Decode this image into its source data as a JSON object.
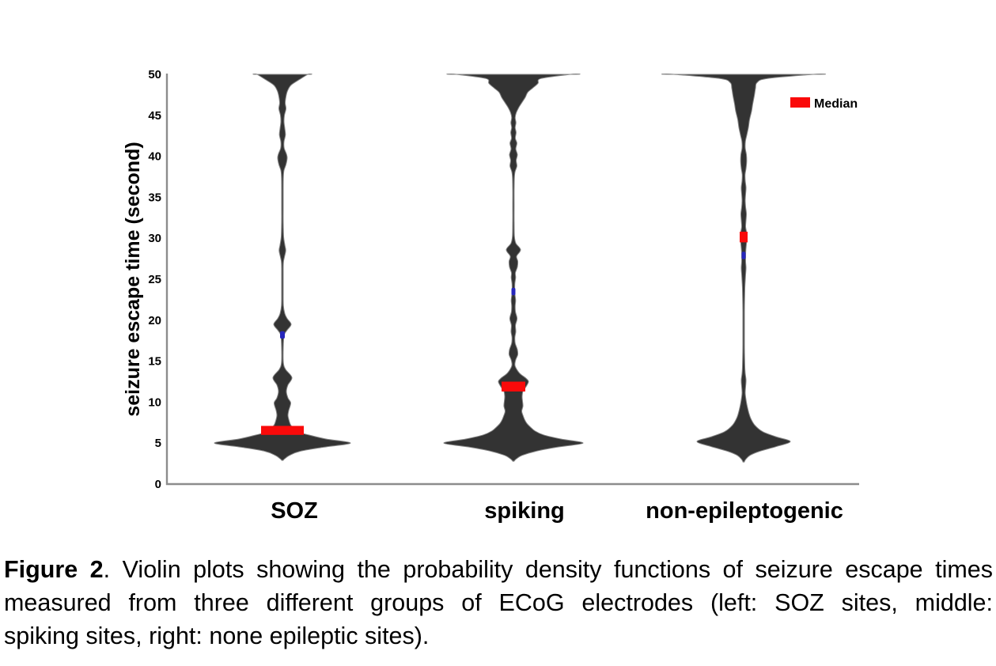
{
  "figure": {
    "caption": {
      "prefix": "Figure 2",
      "line1_rest": ". Violin plots showing the probability density functions of seizure escape times",
      "line2": "measured from three different groups of ECoG electrodes (left: SOZ sites, middle:",
      "line3": "spiking sites, right: none epileptic sites)."
    }
  },
  "chart_data": {
    "type": "violin",
    "title": "",
    "xlabel": "",
    "ylabel": "seizure escape time (second)",
    "ylim": [
      0,
      50
    ],
    "y_ticks": [
      0,
      5,
      10,
      15,
      20,
      25,
      30,
      35,
      40,
      45,
      50
    ],
    "grid": false,
    "legend": {
      "label": "Median",
      "position": "top-right",
      "swatch_color": "#fa0a0a"
    },
    "categories": [
      "SOZ",
      "spiking",
      "non-epileptogenic"
    ],
    "colors": {
      "violin_fill": "#333333",
      "violin_stroke": "#848484",
      "median": "#fa0a0a",
      "mean": "#2626bb",
      "axis": "#8c8c8c",
      "text": "#000000"
    },
    "series": [
      {
        "name": "SOZ",
        "median_interval_s": [
          6.0,
          7.1
        ],
        "median_halfwidth": 27,
        "mean_mark_s": 18.2,
        "mean_halfwidth": 3,
        "profile": [
          [
            50,
            32
          ],
          [
            49.4,
            22
          ],
          [
            48.7,
            11
          ],
          [
            48,
            6.5
          ],
          [
            47.3,
            4.5
          ],
          [
            46.5,
            3.5
          ],
          [
            45.8,
            4.5
          ],
          [
            45,
            2.5
          ],
          [
            44.2,
            2
          ],
          [
            43.4,
            3
          ],
          [
            42.6,
            3.8
          ],
          [
            41.8,
            2
          ],
          [
            41,
            2.2
          ],
          [
            40.3,
            5
          ],
          [
            39.8,
            6
          ],
          [
            39,
            4.5
          ],
          [
            38.3,
            2
          ],
          [
            37.5,
            1.2
          ],
          [
            36,
            1
          ],
          [
            34,
            1
          ],
          [
            32,
            1
          ],
          [
            30.2,
            1.5
          ],
          [
            29.2,
            3
          ],
          [
            28.5,
            4.2
          ],
          [
            27.7,
            2.5
          ],
          [
            27,
            1.2
          ],
          [
            25.5,
            1
          ],
          [
            23.5,
            1
          ],
          [
            21.8,
            1.2
          ],
          [
            20.8,
            3
          ],
          [
            20.2,
            6
          ],
          [
            19.5,
            11
          ],
          [
            18.8,
            6
          ],
          [
            18.3,
            2.5
          ],
          [
            17.7,
            1.5
          ],
          [
            16.5,
            1
          ],
          [
            14.8,
            1.2
          ],
          [
            14,
            4
          ],
          [
            13,
            12
          ],
          [
            12.1,
            7
          ],
          [
            11.3,
            5
          ],
          [
            10.5,
            7
          ],
          [
            9.9,
            10.5
          ],
          [
            9,
            8
          ],
          [
            8.4,
            7
          ],
          [
            7.9,
            8
          ],
          [
            7.3,
            10
          ],
          [
            6.9,
            13
          ],
          [
            6.4,
            18
          ],
          [
            6,
            33
          ],
          [
            5.5,
            55
          ],
          [
            5,
            86
          ],
          [
            4.5,
            52
          ],
          [
            4,
            22
          ],
          [
            3.5,
            9
          ],
          [
            3.1,
            3
          ],
          [
            2.9,
            0.8
          ]
        ]
      },
      {
        "name": "spiking",
        "median_interval_s": [
          11.3,
          12.5
        ],
        "median_halfwidth": 15,
        "mean_mark_s": 23.5,
        "mean_halfwidth": 2.5,
        "profile": [
          [
            50,
            72
          ],
          [
            49.5,
            35
          ],
          [
            48.9,
            31
          ],
          [
            48.3,
            24
          ],
          [
            47.8,
            18
          ],
          [
            47.2,
            15
          ],
          [
            46.6,
            11
          ],
          [
            46,
            7
          ],
          [
            45.3,
            3.5
          ],
          [
            44.7,
            2.2
          ],
          [
            44.1,
            3.2
          ],
          [
            43.5,
            2.2
          ],
          [
            42.9,
            3.4
          ],
          [
            42.2,
            2.4
          ],
          [
            41.6,
            4.4
          ],
          [
            40.9,
            3
          ],
          [
            40.2,
            5
          ],
          [
            39.5,
            3.5
          ],
          [
            38.8,
            4.4
          ],
          [
            38.1,
            2
          ],
          [
            37.4,
            1.2
          ],
          [
            36,
            0.9
          ],
          [
            34,
            0.9
          ],
          [
            32,
            0.9
          ],
          [
            30.3,
            1.2
          ],
          [
            29.4,
            3
          ],
          [
            28.6,
            9
          ],
          [
            27.8,
            4
          ],
          [
            27.2,
            5.5
          ],
          [
            26.5,
            5
          ],
          [
            25.8,
            2.5
          ],
          [
            25.2,
            2.8
          ],
          [
            24.5,
            1.8
          ],
          [
            23.8,
            1.6
          ],
          [
            23.1,
            2
          ],
          [
            22.4,
            2.8
          ],
          [
            21.7,
            2.2
          ],
          [
            21,
            2.6
          ],
          [
            20.2,
            4.6
          ],
          [
            19.4,
            2.6
          ],
          [
            18.6,
            3
          ],
          [
            17.9,
            1.8
          ],
          [
            17.2,
            2.2
          ],
          [
            16.4,
            5
          ],
          [
            15.8,
            5.5
          ],
          [
            15.2,
            3
          ],
          [
            14.6,
            1.8
          ],
          [
            14.2,
            3
          ],
          [
            13.5,
            8
          ],
          [
            12.9,
            16
          ],
          [
            12.5,
            19
          ],
          [
            11.9,
            16
          ],
          [
            11.3,
            12
          ],
          [
            10.7,
            11
          ],
          [
            10.1,
            11.5
          ],
          [
            9.5,
            12
          ],
          [
            8.9,
            10.5
          ],
          [
            8.4,
            12
          ],
          [
            7.9,
            14
          ],
          [
            7.4,
            17
          ],
          [
            7,
            21
          ],
          [
            6.5,
            27
          ],
          [
            6,
            38
          ],
          [
            5.5,
            60
          ],
          [
            5,
            88
          ],
          [
            4.5,
            55
          ],
          [
            4,
            28
          ],
          [
            3.5,
            11
          ],
          [
            3.1,
            4
          ],
          [
            2.8,
            0.8
          ]
        ]
      },
      {
        "name": "non-epileptogenic",
        "median_interval_s": [
          29.5,
          30.8
        ],
        "median_halfwidth": 5,
        "mean_mark_s": 27.9,
        "mean_halfwidth": 2.5,
        "profile": [
          [
            50,
            88
          ],
          [
            49.5,
            30
          ],
          [
            49,
            17
          ],
          [
            48.3,
            15
          ],
          [
            47.4,
            13.5
          ],
          [
            46.4,
            11.5
          ],
          [
            45.5,
            10
          ],
          [
            44.5,
            7.5
          ],
          [
            43.5,
            6
          ],
          [
            42.6,
            4
          ],
          [
            41.8,
            2.2
          ],
          [
            41,
            2
          ],
          [
            40.2,
            3.5
          ],
          [
            39.3,
            3.8
          ],
          [
            38.5,
            3
          ],
          [
            37.8,
            1.8
          ],
          [
            37,
            2
          ],
          [
            36.2,
            3
          ],
          [
            35.4,
            2.5
          ],
          [
            34.6,
            2
          ],
          [
            33.8,
            2.5
          ],
          [
            33,
            3.5
          ],
          [
            32.2,
            3
          ],
          [
            31.4,
            2.5
          ],
          [
            30.8,
            3.5
          ],
          [
            30,
            4
          ],
          [
            29.3,
            3.5
          ],
          [
            28.6,
            2.8
          ],
          [
            27.9,
            2.5
          ],
          [
            27.1,
            2.5
          ],
          [
            26.4,
            3
          ],
          [
            25.6,
            2.5
          ],
          [
            24.8,
            2
          ],
          [
            23.8,
            1.5
          ],
          [
            22.5,
            1.2
          ],
          [
            21,
            1
          ],
          [
            19,
            1
          ],
          [
            17,
            1
          ],
          [
            15.5,
            1.2
          ],
          [
            14.3,
            1.5
          ],
          [
            13.5,
            2
          ],
          [
            12.7,
            3
          ],
          [
            11.9,
            2.5
          ],
          [
            11.1,
            2
          ],
          [
            10.3,
            3
          ],
          [
            9.5,
            4.5
          ],
          [
            8.7,
            6.5
          ],
          [
            8,
            9
          ],
          [
            7.2,
            14
          ],
          [
            6.4,
            24
          ],
          [
            5.8,
            40
          ],
          [
            5.2,
            59
          ],
          [
            4.6,
            42
          ],
          [
            4,
            20
          ],
          [
            3.5,
            8
          ],
          [
            3,
            2.5
          ],
          [
            2.7,
            0.8
          ]
        ]
      }
    ]
  }
}
